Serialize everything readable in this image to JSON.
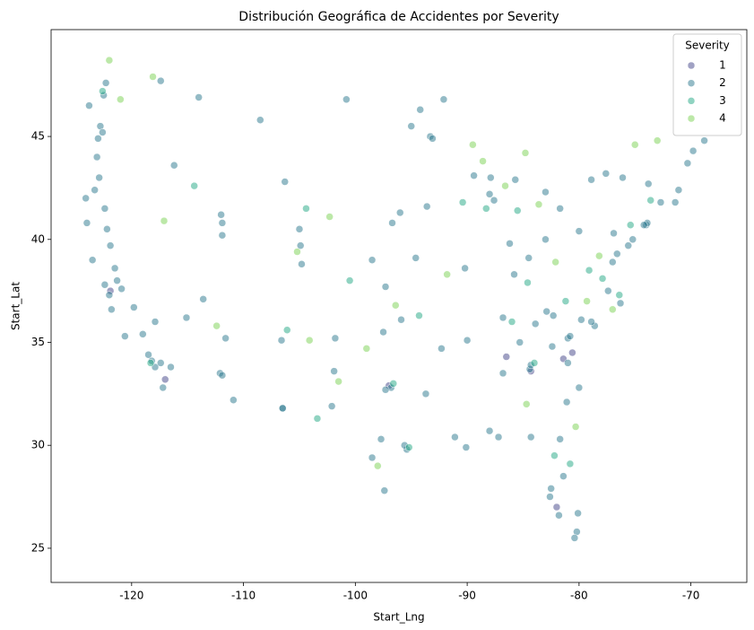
{
  "chart_data": {
    "type": "scatter",
    "title": "Distribución Geográfica de Accidentes por Severity",
    "x_label": "Start_Lng",
    "y_label": "Start_Lat",
    "legend_title": "Severity",
    "legend_position": "upper right",
    "alpha": 0.5,
    "xlim": [
      -127.2,
      -65.0
    ],
    "ylim": [
      23.34,
      50.19
    ],
    "xticks": [
      -120,
      -110,
      -100,
      -90,
      -80,
      -70
    ],
    "yticks": [
      25,
      30,
      35,
      40,
      45
    ],
    "series": [
      {
        "name": "1",
        "color": "#414487",
        "x": [
          -81.4,
          -82.0,
          -117.0,
          -84.3,
          -97.0,
          -121.9,
          -80.6,
          -86.5
        ],
        "y": [
          34.2,
          27.0,
          33.2,
          33.6,
          32.9,
          37.5,
          34.5,
          34.3
        ]
      },
      {
        "name": "2",
        "color": "#2a788e",
        "x": [
          -124.1,
          -123.8,
          -122.3,
          -122.5,
          -122.8,
          -122.6,
          -123.0,
          -123.1,
          -122.9,
          -123.3,
          -122.4,
          -122.2,
          -121.5,
          -122.4,
          -122.0,
          -121.8,
          -120.6,
          -119.8,
          -119.0,
          -118.2,
          -117.9,
          -117.2,
          -117.4,
          -116.5,
          -121.3,
          -120.9,
          -118.5,
          -124.0,
          -123.5,
          -121.9,
          -117.4,
          -116.2,
          -114.0,
          -111.9,
          -111.9,
          -112.0,
          -115.1,
          -112.1,
          -111.9,
          -110.9,
          -111.6,
          -106.6,
          -106.5,
          -104.9,
          -105.0,
          -104.8,
          -108.5,
          -106.3,
          -113.6,
          -117.9,
          -96.8,
          -97.3,
          -95.4,
          -95.6,
          -98.5,
          -97.7,
          -97.5,
          -95.9,
          -94.6,
          -96.0,
          -93.6,
          -93.3,
          -93.1,
          -94.2,
          -95.0,
          -92.1,
          -90.2,
          -92.3,
          -90.1,
          -91.1,
          -93.7,
          -97.4,
          -101.8,
          -101.9,
          -102.1,
          -106.5,
          -98.5,
          -97.3,
          -100.8,
          -96.7,
          -87.6,
          -88.0,
          -87.9,
          -89.4,
          -86.2,
          -84.5,
          -83.0,
          -81.7,
          -83.0,
          -85.7,
          -84.4,
          -84.3,
          -86.8,
          -85.8,
          -86.8,
          -90.0,
          -81.0,
          -80.8,
          -78.6,
          -79.8,
          -77.0,
          -76.6,
          -75.2,
          -74.0,
          -73.9,
          -74.2,
          -71.1,
          -71.4,
          -72.7,
          -73.8,
          -76.1,
          -77.6,
          -78.9,
          -80.0,
          -77.4,
          -76.3,
          -81.0,
          -80.0,
          -81.1,
          -82.4,
          -81.7,
          -82.5,
          -81.4,
          -80.2,
          -80.1,
          -82.6,
          -81.8,
          -84.3,
          -87.2,
          -88.0,
          -82.9,
          -78.9,
          -69.8,
          -70.3,
          -68.8,
          -80.4,
          -75.6,
          -76.9,
          -82.3,
          -85.3,
          -83.9
        ],
        "y": [
          42.0,
          46.5,
          47.6,
          47.0,
          45.5,
          45.2,
          44.9,
          44.0,
          43.0,
          42.4,
          41.5,
          40.5,
          38.6,
          37.8,
          37.3,
          36.6,
          35.3,
          36.7,
          35.4,
          34.1,
          33.8,
          32.8,
          34.0,
          33.8,
          38.0,
          37.6,
          34.4,
          40.8,
          39.0,
          39.7,
          47.7,
          43.6,
          46.9,
          40.8,
          40.2,
          41.2,
          36.2,
          33.5,
          33.4,
          32.2,
          35.2,
          35.1,
          31.8,
          39.7,
          40.5,
          38.8,
          45.8,
          42.8,
          37.1,
          36.0,
          32.8,
          32.7,
          29.8,
          30.0,
          29.4,
          30.3,
          35.5,
          36.1,
          39.1,
          41.3,
          41.6,
          45.0,
          44.9,
          46.3,
          45.5,
          46.8,
          38.6,
          34.7,
          29.9,
          30.4,
          32.5,
          27.8,
          35.2,
          33.6,
          31.9,
          31.8,
          39.0,
          37.7,
          46.8,
          40.8,
          41.9,
          42.2,
          43.0,
          43.1,
          39.8,
          39.1,
          40.0,
          41.5,
          42.3,
          42.9,
          33.7,
          33.9,
          36.2,
          38.3,
          33.5,
          35.1,
          35.2,
          35.3,
          35.8,
          36.1,
          38.9,
          39.3,
          40.0,
          40.7,
          40.8,
          40.7,
          42.4,
          41.8,
          41.8,
          42.7,
          43.0,
          43.2,
          42.9,
          40.4,
          37.5,
          36.9,
          34.0,
          32.8,
          32.1,
          34.8,
          30.3,
          27.9,
          28.5,
          25.8,
          26.7,
          27.5,
          26.6,
          30.4,
          30.4,
          30.7,
          36.5,
          36.0,
          44.3,
          43.7,
          44.8,
          25.5,
          39.7,
          40.3,
          36.3,
          35.0,
          35.9
        ]
      },
      {
        "name": "3",
        "color": "#22a884",
        "x": [
          -122.6,
          -118.3,
          -96.6,
          -95.2,
          -88.3,
          -86.0,
          -84.0,
          -82.2,
          -80.8,
          -77.9,
          -76.4,
          -79.1,
          -81.2,
          -85.5,
          -90.4,
          -104.4,
          -114.4,
          -100.5,
          -94.3,
          -84.6,
          -75.4,
          -73.6,
          -103.4,
          -106.1
        ],
        "y": [
          47.2,
          34.0,
          33.0,
          29.9,
          41.5,
          36.0,
          34.0,
          29.5,
          29.1,
          38.1,
          37.3,
          38.5,
          37.0,
          41.4,
          41.8,
          41.5,
          42.6,
          38.0,
          36.3,
          37.9,
          40.7,
          41.9,
          31.3,
          35.6
        ]
      },
      {
        "name": "4",
        "color": "#7ad151",
        "x": [
          -122.0,
          -121.0,
          -118.1,
          -117.1,
          -112.4,
          -105.2,
          -102.3,
          -99.0,
          -98.0,
          -101.5,
          -104.1,
          -89.5,
          -88.6,
          -86.6,
          -83.6,
          -78.2,
          -79.3,
          -77.0,
          -75.0,
          -73.0,
          -84.8,
          -91.8,
          -82.1,
          -80.3,
          -84.7,
          -96.4
        ],
        "y": [
          48.7,
          46.8,
          47.9,
          40.9,
          35.8,
          39.4,
          41.1,
          34.7,
          29.0,
          33.1,
          35.1,
          44.6,
          43.8,
          42.6,
          41.7,
          39.2,
          37.0,
          36.6,
          44.6,
          44.8,
          44.2,
          38.3,
          38.9,
          30.9,
          32.0,
          36.8
        ]
      }
    ]
  }
}
